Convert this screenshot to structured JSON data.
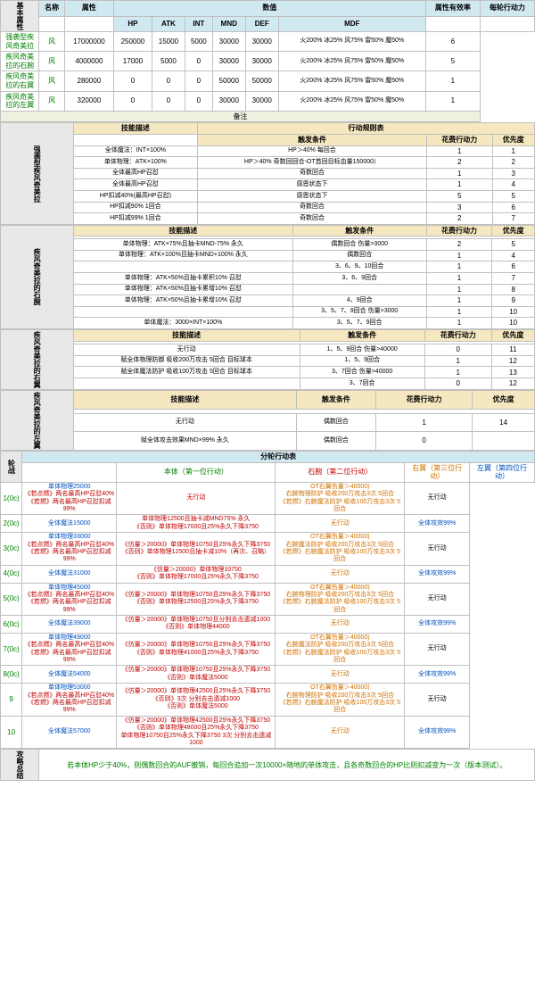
{
  "stats": {
    "headers": [
      "名称",
      "属性",
      "HP",
      "ATK",
      "INT",
      "MND",
      "DEF",
      "MDF",
      "属性有效率",
      "每轮行动力"
    ],
    "label": "基本属性",
    "element": "风",
    "rows": [
      {
        "name": "强袭型疾风奇美拉",
        "hp": "17000000",
        "atk": "250000",
        "int": "15000",
        "mnd": "5000",
        "def": "30000",
        "mdf": "30000",
        "eff": "火200% 冰25% 风75% 雷50% 魔50%",
        "act": "6"
      },
      {
        "name": "疾风奇美拉的石腕",
        "hp": "4000000",
        "atk": "17000",
        "int": "5000",
        "mnd": "0",
        "def": "30000",
        "mdf": "30000",
        "eff": "火200% 冰25% 风75% 雷50% 魔50%",
        "act": "5"
      },
      {
        "name": "疾风奇美拉的右翼",
        "hp": "280000",
        "atk": "0",
        "int": "0",
        "mnd": "0",
        "def": "50000",
        "mdf": "50000",
        "eff": "火200% 冰25% 风75% 雷50% 魔50%",
        "act": "1"
      },
      {
        "name": "疾风奇美拉的左翼",
        "hp": "320000",
        "atk": "0",
        "int": "0",
        "mnd": "0",
        "def": "30000",
        "mdf": "30000",
        "eff": "火200% 冰25% 风75% 雷50% 魔50%",
        "act": "1"
      }
    ],
    "note": "备注"
  },
  "s1": {
    "label": "强袭型疾风奇美拉",
    "h": [
      "技能描述",
      "行动规则表"
    ],
    "sh": [
      "触发条件",
      "花费行动力",
      "优先度"
    ],
    "rows": [
      [
        "全体魔法：INT×100%",
        "HP＞40% 每回合",
        "1",
        "1"
      ],
      [
        "单体物理：ATK×100%",
        "HP＞40% 奇数回回合-OT首回目标血量150000）",
        "2",
        "2"
      ],
      [
        "全体最高HP召怼",
        "奇数回合",
        "1",
        "3"
      ],
      [
        "全体最高HP召怼",
        "感恩状态下",
        "1",
        "4"
      ],
      [
        "HP扣减40%(最高HP召怼)",
        "感恩状态下",
        "5",
        "5"
      ],
      [
        "HP扣减90% 1回合",
        "奇数回合",
        "3",
        "6"
      ],
      [
        "HP扣减99% 1回合",
        "奇数回合",
        "2",
        "7"
      ]
    ]
  },
  "s2": {
    "label": "疾风奇美拉的石腕",
    "h": [
      "技能描述",
      "触发条件",
      "花费行动力",
      "优先度"
    ],
    "rows": [
      [
        "单体物理：ATK×75%且抽卡MND-75% 永久",
        "偶数回合 伤量>3000",
        "2",
        "5"
      ],
      [
        "单体物理：ATK×100%且抽卡MND+100% 永久",
        "偶数回合",
        "1",
        "4"
      ],
      [
        "",
        "3、6、9、10回合",
        "1",
        "6"
      ],
      [
        "单体物理：ATK×50%且抽卡累积10% 召怼",
        "3、6、9回合",
        "1",
        "7"
      ],
      [
        "单体物理：ATK×50%且抽卡累增10% 召怼",
        "",
        "1",
        "8"
      ],
      [
        "单体物理：ATK×50%且抽卡累增10% 召怼",
        "4、9回合",
        "1",
        "9"
      ],
      [
        "",
        "3、5、7、9回合 伤量>3000",
        "1",
        "10"
      ],
      [
        "单体魔法：3000×INT×100%",
        "3、5、7、9回合",
        "1",
        "10"
      ]
    ]
  },
  "s3": {
    "label": "疾风奇美拉的右翼",
    "h": [
      "技能描述",
      "触发条件",
      "花费行动力",
      "优先度"
    ],
    "rows": [
      [
        "无行动",
        "1、5、9回合 伤量>40000",
        "0",
        "11"
      ],
      [
        "赋全体物理防御 吸收200万攻击 5回合 目标球本",
        "1、5、9回合",
        "1",
        "12"
      ],
      [
        "赋全体魔法防护 吸收100万攻击 5回合 目标球本",
        "3、7回合 伤量>40000",
        "1",
        "13"
      ],
      [
        "",
        "3、7回合",
        "0",
        "12"
      ]
    ]
  },
  "s4": {
    "label": "疾风奇美拉的左翼",
    "h": [
      "技能描述",
      "触发条件",
      "花费行动力",
      "优先度"
    ],
    "rows": [
      [
        "无行动",
        "偶数回合",
        "1",
        "14"
      ],
      [
        "赋全体攻击效果MND×99% 永久",
        "偶数回合",
        "0",
        ""
      ]
    ]
  },
  "rounds": {
    "label": "轮战",
    "sh": "分轮行动表",
    "cols": [
      "本体（第一位行动）",
      "石腕（第二位行动）",
      "右翼（第三位行动）",
      "左翼（第四位行动）"
    ],
    "rows": [
      {
        "r": "1(0c)",
        "c1": [
          "单体物理25000",
          "《若点燃》两名最高HP召怼40%",
          "《若燃》两名最高HP召怼扣减99%"
        ],
        "c2": [
          "无行动"
        ],
        "c3": [
          "OT右翼伤量＞40000)",
          "右腕物理防护 吸收200万攻击3次 5回合",
          "《若燃》右腕魔法防护 吸收100万攻击3次 5回合"
        ],
        "c4": [
          "无行动"
        ]
      },
      {
        "r": "2(0c)",
        "c1": [
          "全体魔法15000"
        ],
        "c2": [
          "单体物理12500且抽卡减MND75% 永久",
          "《否则》单体物理17000且25%永久下降3750"
        ],
        "c3": [
          "无行动"
        ],
        "c4": [
          "全体攻效99%"
        ]
      },
      {
        "r": "3(0c)",
        "c1": [
          "单体物理33000",
          "《若点燃》两名最高HP召怼40%",
          "《若燃》两名最高HP召怼扣减99%"
        ],
        "c2": [
          "《仿量＞20000》单体物理10750且25%永久下降3750",
          "《否则》单体物理12500且抽卡减10%（再次、召略）"
        ],
        "c3": [
          "OT右翼伤量＞40000)",
          "右腕魔法防护 吸收200万攻击3次 5回合",
          "《若燃》右腕魔法防护 吸收100万攻击3次 5回合"
        ],
        "c4": [
          "无行动"
        ]
      },
      {
        "r": "4(0c)",
        "c1": [
          "全体魔法31000"
        ],
        "c2": [
          "《仿量＞20000》单体物理10750",
          "《否则》单体物理17000且25%永久下降3750"
        ],
        "c3": [
          "无行动"
        ],
        "c4": [
          "全体攻效99%"
        ]
      },
      {
        "r": "5(0c)",
        "c1": [
          "单体物理45000",
          "《若点燃》两名最高HP召怼40%",
          "《若燃》两名最高HP召怼扣减99%"
        ],
        "c2": [
          "《仿量＞20000》单体物理10750且25%永久下降3750",
          "《否则》单体物理12500且25%永久下降3750"
        ],
        "c3": [
          "OT右翼伤量＞40000)",
          "右腕物理防护 吸收200万攻击3次 5回合",
          "《若燃》右腕魔法防护 吸收100万攻击3次 5回合"
        ],
        "c4": [
          "无行动"
        ]
      },
      {
        "r": "6(0c)",
        "c1": [
          "全体魔法39000"
        ],
        "c2": [
          "《仿量＞20000》单体物理10750且分别去击遗减1000",
          "《否则》单体物理44000"
        ],
        "c3": [
          "无行动"
        ],
        "c4": [
          "全体攻效99%"
        ]
      },
      {
        "r": "7(0c)",
        "c1": [
          "单体物理49000",
          "《若点燃》两名最高HP召怼40%",
          "《若燃》两名最高HP召怼扣减99%"
        ],
        "c2": [
          "《仿量＞20000》单体物理10750且25%永久下降3750",
          "《否则》单体物理41000且25%永久下降3750"
        ],
        "c3": [
          "OT右翼伤量＞40000)",
          "右腕魔法防护 吸收200万攻击3次 5回合",
          "《若燃》右腕魔法防护 吸收100万攻击3次 5回合"
        ],
        "c4": [
          "无行动"
        ]
      },
      {
        "r": "8(0c)",
        "c1": [
          "全体魔法54000"
        ],
        "c2": [
          "《仿量＞20000》单体物理10750且25%永久下降3750",
          "《否则》单体魔法5000"
        ],
        "c3": [
          "无行动"
        ],
        "c4": [
          "全体攻效99%"
        ]
      },
      {
        "r": "9",
        "c1": [
          "单体物理53000",
          "《若点燃》两名最高HP召怼40%",
          "《若燃》两名最高HP召怼扣减99%"
        ],
        "c2": [
          "《仿量＞20000》单体物理42500且25%永久下降3750",
          "《否则》3次 分别去击遗减1000",
          "《否则》单体魔法5000"
        ],
        "c3": [
          "OT右翼伤量＞40000)",
          "右腕物理防护 吸收200万攻击3次 5回合",
          "《若燃》右腕魔法防护 吸收100万攻击3次 5回合"
        ],
        "c4": [
          "无行动"
        ]
      },
      {
        "r": "10",
        "c1": [
          "全体魔法57000"
        ],
        "c2": [
          "《仿量＞20000》单体物理42500且25%永久下降3750",
          "《否则》单体物理48000且25%永久下降3750",
          "单体物理10750且25%永久下降3750 3次 分别去击遗减1000"
        ],
        "c3": [
          "无行动"
        ],
        "c4": [
          "全体攻效99%"
        ]
      }
    ]
  },
  "footer": {
    "label": "攻略总结",
    "text": "若本体HP少于40%，则偶数回合的AUF撤销，每回合追加一次10000×随地的单体攻击，且各奇数回合的HP比则扣减变为一次（版本测试）。"
  }
}
